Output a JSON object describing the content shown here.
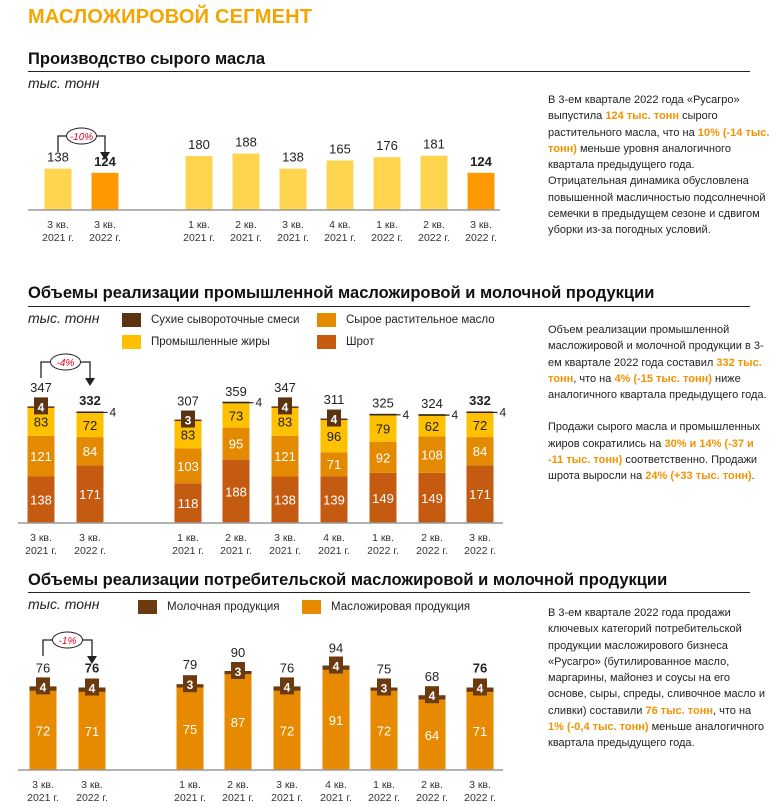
{
  "page_title": "МАСЛОЖИРОВОЙ СЕГМЕНТ",
  "colors": {
    "accent": "#F5A500",
    "highlight_text": "#F39200",
    "change_label": "#E8001C"
  },
  "sections": [
    {
      "title": "Производство сырого масла",
      "unit": "тыс. тонн",
      "note": [
        [
          {
            "t": "В 3-ем квартале 2022 года «Русагро» выпустила "
          },
          {
            "t": "124 тыс. тонн",
            "hl": true
          },
          {
            "t": " сырого растительного масла, что на "
          },
          {
            "t": "10% (-14 тыс. тонн)",
            "hl": true
          },
          {
            "t": " меньше уровня аналогичного квартала предыдущего года. Отрицательная динамика обусловлена повышенной масличностью подсолнечной семечки в предыдущем сезоне и сдвигом уборки из-за погодных условий."
          }
        ]
      ]
    },
    {
      "title": "Объемы реализации промышленной масложировой и молочной продукции",
      "unit": "тыс. тонн",
      "note": [
        [
          {
            "t": "Объем реализации промышленной масложировой и молочной продукции в 3-ем квартале 2022 года составил "
          },
          {
            "t": "332 тыс. тонн",
            "hl": true
          },
          {
            "t": ", что на "
          },
          {
            "t": "4% (-15 тыс. тонн)",
            "hl": true
          },
          {
            "t": " ниже аналогичного квартала предыдущего года."
          }
        ],
        [
          {
            "t": "Продажи сырого масла и промышленных жиров сократились на "
          },
          {
            "t": "30% и 14% (-37 и -11 тыс. тонн)",
            "hl": true
          },
          {
            "t": " соответственно. Продажи шрота выросли на "
          },
          {
            "t": "24% (+33 тыс. тонн)",
            "hl": true
          },
          {
            "t": "."
          }
        ]
      ]
    },
    {
      "title": "Объемы реализации потребительской масложировой и молочной продукции",
      "unit": "тыс. тонн",
      "note": [
        [
          {
            "t": "В 3-ем квартале 2022 года продажи ключевых категорий потребительской продукции масложирового бизнеса «Русагро» (бутилированное масло, маргарины, майонез и соусы на его основе, сыры, спреды, сливочное масло и сливки) составили "
          },
          {
            "t": "76 тыс. тонн",
            "hl": true
          },
          {
            "t": ", что на "
          },
          {
            "t": "1% (-0,4 тыс. тонн)",
            "hl": true
          },
          {
            "t": " меньше аналогичного квартала предыдущего года."
          }
        ]
      ]
    }
  ],
  "chart_data": [
    {
      "type": "bar",
      "categories": [
        [
          "3 кв.",
          "2021 г."
        ],
        [
          "3 кв.",
          "2022 г."
        ],
        [
          "1 кв.",
          "2021 г."
        ],
        [
          "2 кв.",
          "2021 г."
        ],
        [
          "3 кв.",
          "2021 г."
        ],
        [
          "4 кв.",
          "2021 г."
        ],
        [
          "1 кв.",
          "2022 г."
        ],
        [
          "2 кв.",
          "2022 г."
        ],
        [
          "3 кв.",
          "2022 г."
        ]
      ],
      "values": [
        138,
        124,
        180,
        188,
        138,
        165,
        176,
        181,
        124
      ],
      "colors": {
        "default": "#FFD54F",
        "highlight": "#FF9900"
      },
      "change_label": "-10%",
      "ylabel": "тыс. тонн"
    },
    {
      "type": "stacked-bar",
      "categories": [
        [
          "3 кв.",
          "2021 г."
        ],
        [
          "3 кв.",
          "2022 г."
        ],
        [
          "1 кв.",
          "2021 г."
        ],
        [
          "2 кв.",
          "2021 г."
        ],
        [
          "3 кв.",
          "2021 г."
        ],
        [
          "4 кв.",
          "2021 г."
        ],
        [
          "1 кв.",
          "2022 г."
        ],
        [
          "2 кв.",
          "2022 г."
        ],
        [
          "3 кв.",
          "2022 г."
        ]
      ],
      "series": [
        {
          "name": "Шрот",
          "color": "#C55A11",
          "values": [
            138,
            171,
            118,
            188,
            138,
            139,
            149,
            149,
            171
          ]
        },
        {
          "name": "Сырое растительное масло",
          "color": "#E38A00",
          "values": [
            121,
            84,
            103,
            95,
            121,
            71,
            92,
            108,
            84
          ]
        },
        {
          "name": "Промышленные жиры",
          "color": "#FFC000",
          "values": [
            83,
            72,
            83,
            73,
            83,
            96,
            79,
            62,
            72
          ]
        },
        {
          "name": "Сухие сывороточные смеси",
          "color": "#5C3310",
          "values": [
            4,
            4,
            3,
            4,
            4,
            4,
            4,
            4,
            4
          ]
        }
      ],
      "totals": [
        347,
        332,
        307,
        359,
        347,
        311,
        325,
        324,
        332
      ],
      "legend_order": [
        3,
        1,
        2,
        0
      ],
      "change_label": "-4%",
      "ylabel": "тыс. тонн"
    },
    {
      "type": "stacked-bar",
      "categories": [
        [
          "3 кв.",
          "2021 г."
        ],
        [
          "3 кв.",
          "2022 г."
        ],
        [
          "1 кв.",
          "2021 г."
        ],
        [
          "2 кв.",
          "2021 г."
        ],
        [
          "3 кв.",
          "2021 г."
        ],
        [
          "4 кв.",
          "2021 г."
        ],
        [
          "1 кв.",
          "2022 г."
        ],
        [
          "2 кв.",
          "2022 г."
        ],
        [
          "3 кв.",
          "2022 г."
        ]
      ],
      "series": [
        {
          "name": "Масложировая продукция",
          "color": "#E88A00",
          "values": [
            72,
            71,
            75,
            87,
            72,
            91,
            72,
            64,
            71
          ]
        },
        {
          "name": "Молочная продукция",
          "color": "#6B3A0E",
          "values": [
            4,
            4,
            3,
            3,
            4,
            4,
            3,
            4,
            4
          ]
        }
      ],
      "totals": [
        76,
        76,
        79,
        90,
        76,
        94,
        75,
        68,
        76
      ],
      "legend_order": [
        1,
        0
      ],
      "change_label": "-1%",
      "ylabel": "тыс. тонн"
    }
  ]
}
